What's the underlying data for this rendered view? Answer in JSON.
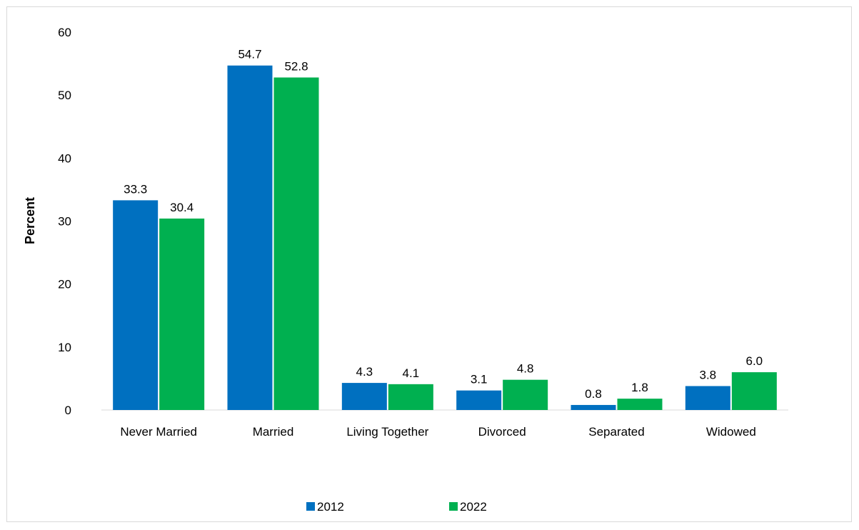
{
  "chart_data": {
    "type": "bar",
    "title": "",
    "xlabel": "",
    "ylabel": "Percent",
    "ylim": [
      0,
      60
    ],
    "yticks": [
      "0",
      "10",
      "20",
      "30",
      "40",
      "50",
      "60"
    ],
    "grid": false,
    "legend_position": "bottom",
    "categories": [
      "Never Married",
      "Married",
      "Living Together",
      "Divorced",
      "Separated",
      "Widowed"
    ],
    "series": [
      {
        "name": "2012",
        "color": "#0070c0",
        "values": [
          33.3,
          54.7,
          4.3,
          3.1,
          0.8,
          3.8
        ],
        "labels": [
          "33.3",
          "54.7",
          "4.3",
          "3.1",
          "0.8",
          "3.8"
        ]
      },
      {
        "name": "2022",
        "color": "#00b050",
        "values": [
          30.4,
          52.8,
          4.1,
          4.8,
          1.8,
          6.0
        ],
        "labels": [
          "30.4",
          "52.8",
          "4.1",
          "4.8",
          "1.8",
          "6.0"
        ]
      }
    ]
  }
}
